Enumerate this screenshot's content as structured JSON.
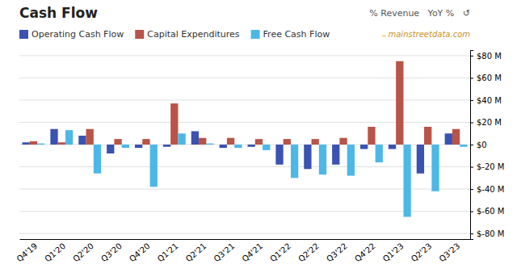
{
  "chart_data": {
    "type": "bar",
    "title": "Cash Flow",
    "annotations": [
      "% Revenue   YoY %   ↺",
      "ₙ mainstreetdata.com"
    ],
    "categories": [
      "Q4'19",
      "Q1'20",
      "Q2'20",
      "Q3'20",
      "Q4'20",
      "Q1'21",
      "Q2'21",
      "Q3'21",
      "Q4'21",
      "Q1'22",
      "Q2'22",
      "Q3'22",
      "Q4'22",
      "Q1'23",
      "Q2'23",
      "Q3'23"
    ],
    "series": [
      {
        "name": "Operating Cash Flow",
        "color": "#3a52b0",
        "values": [
          2,
          14,
          8,
          -8,
          -3,
          -2,
          12,
          -3,
          -2,
          -18,
          -22,
          -18,
          -4,
          -4,
          -26,
          10
        ]
      },
      {
        "name": "Capital Expenditures",
        "color": "#b85448",
        "values": [
          3,
          2,
          14,
          5,
          5,
          37,
          6,
          6,
          5,
          5,
          5,
          6,
          16,
          75,
          16,
          14
        ]
      },
      {
        "name": "Free Cash Flow",
        "color": "#4db8e8",
        "values": [
          1,
          13,
          -26,
          -3,
          -38,
          10,
          1,
          -3,
          -5,
          -30,
          -27,
          -28,
          -16,
          -65,
          -42,
          -2
        ]
      }
    ],
    "ylim": [
      -85,
      85
    ],
    "yticks": [
      {
        "value": -80,
        "label": "$-80 M"
      },
      {
        "value": -60,
        "label": "$-60 M"
      },
      {
        "value": -40,
        "label": "$-40 M"
      },
      {
        "value": -20,
        "label": "$-20 M"
      },
      {
        "value": 0,
        "label": "$0"
      },
      {
        "value": 20,
        "label": "$20 M"
      },
      {
        "value": 40,
        "label": "$40 M"
      },
      {
        "value": 60,
        "label": "$60 M"
      },
      {
        "value": 80,
        "label": "$80 M"
      }
    ],
    "grid": true,
    "legend": "top-left"
  }
}
